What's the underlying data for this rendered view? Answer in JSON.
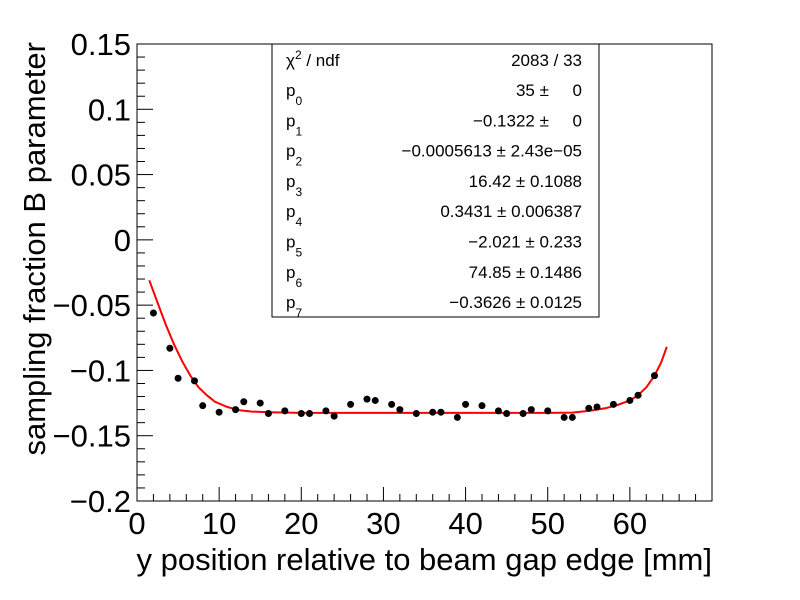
{
  "chart_data": {
    "type": "scatter",
    "title": "",
    "xlabel": "y position relative to beam gap edge [mm]",
    "ylabel": "sampling fraction B parameter",
    "xlim": [
      0,
      70
    ],
    "ylim": [
      -0.2,
      0.15
    ],
    "grid": false,
    "x_ticks": [
      0,
      10,
      20,
      30,
      40,
      50,
      60
    ],
    "x_tick_labels": [
      "0",
      "10",
      "20",
      "30",
      "40",
      "50",
      "60"
    ],
    "y_ticks": [
      -0.2,
      -0.15,
      -0.1,
      -0.05,
      0,
      0.05,
      0.1,
      0.15
    ],
    "y_tick_labels": [
      "−0.2",
      "−0.15",
      "−0.1",
      "−0.05",
      "0",
      "0.05",
      "0.1",
      "0.15"
    ],
    "series": [
      {
        "kind": "points",
        "color": "#000000",
        "x": [
          2,
          4,
          5,
          7,
          8,
          10,
          12,
          13,
          15,
          16,
          18,
          20,
          21,
          23,
          24,
          26,
          28,
          29,
          31,
          32,
          34,
          36,
          37,
          39,
          40,
          42,
          44,
          45,
          47,
          48,
          50,
          52,
          53,
          55,
          56,
          58,
          60,
          61,
          63
        ],
        "y": [
          -0.056,
          -0.083,
          -0.106,
          -0.108,
          -0.127,
          -0.132,
          -0.13,
          -0.124,
          -0.125,
          -0.133,
          -0.131,
          -0.133,
          -0.133,
          -0.131,
          -0.135,
          -0.126,
          -0.122,
          -0.123,
          -0.126,
          -0.13,
          -0.133,
          -0.132,
          -0.132,
          -0.136,
          -0.126,
          -0.127,
          -0.131,
          -0.133,
          -0.133,
          -0.13,
          -0.131,
          -0.136,
          -0.136,
          -0.129,
          -0.128,
          -0.126,
          -0.123,
          -0.119,
          -0.104
        ]
      },
      {
        "kind": "fit",
        "color": "#ff0000",
        "x": [
          1.5,
          2.5,
          3.5,
          4.5,
          5.5,
          6.5,
          7.5,
          8.5,
          9.5,
          11,
          12.5,
          14,
          16,
          20,
          25,
          30,
          35,
          40,
          45,
          50,
          53,
          55,
          57,
          58.5,
          60,
          61,
          62,
          63,
          63.8,
          64.5
        ],
        "y": [
          -0.031,
          -0.048,
          -0.065,
          -0.08,
          -0.093,
          -0.104,
          -0.113,
          -0.119,
          -0.124,
          -0.128,
          -0.1305,
          -0.1315,
          -0.132,
          -0.1325,
          -0.1325,
          -0.1325,
          -0.1325,
          -0.1325,
          -0.1325,
          -0.1325,
          -0.1323,
          -0.131,
          -0.129,
          -0.1265,
          -0.123,
          -0.119,
          -0.113,
          -0.104,
          -0.094,
          -0.082
        ]
      }
    ],
    "stats": {
      "chi2_label": "χ",
      "chi2_sup": "2",
      "chi2_suffix": " / ndf",
      "chi2_value": "2083 / 33",
      "params": [
        {
          "base": "p",
          "sub": "0",
          "value": "35 ±     0"
        },
        {
          "base": "p",
          "sub": "1",
          "value": "−0.1322 ±     0"
        },
        {
          "base": "p",
          "sub": "2",
          "value": "−0.0005613 ± 2.43e−05"
        },
        {
          "base": "p",
          "sub": "3",
          "value": "16.42 ± 0.1088"
        },
        {
          "base": "p",
          "sub": "4",
          "value": "0.3431 ± 0.006387"
        },
        {
          "base": "p",
          "sub": "5",
          "value": "−2.021 ± 0.233"
        },
        {
          "base": "p",
          "sub": "6",
          "value": "74.85 ± 0.1486"
        },
        {
          "base": "p",
          "sub": "7",
          "value": "−0.3626 ± 0.0125"
        }
      ]
    }
  }
}
